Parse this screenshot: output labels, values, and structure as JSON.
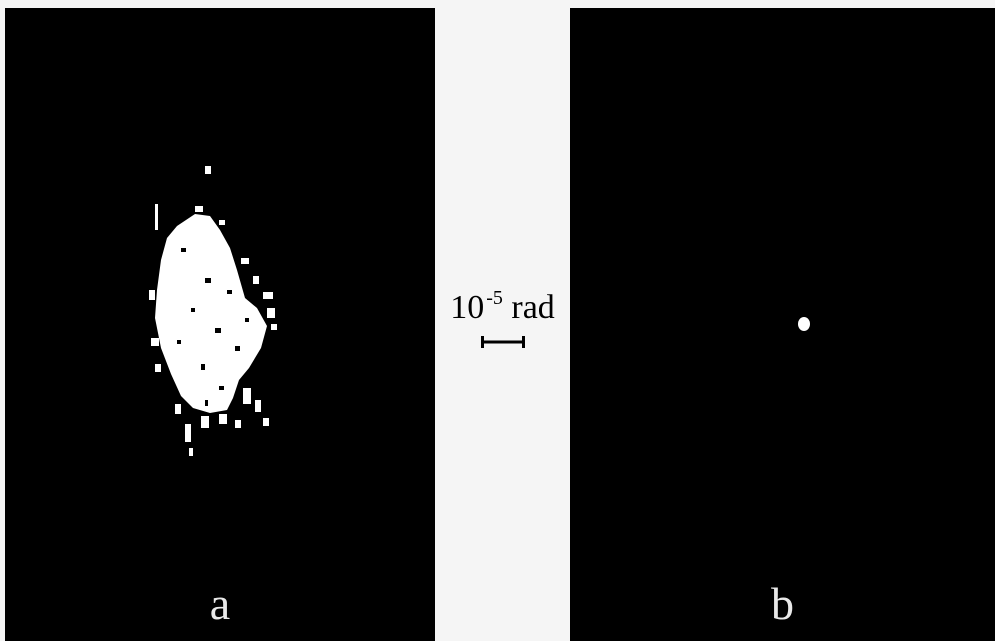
{
  "panels": [
    {
      "label": "a"
    },
    {
      "label": "b"
    }
  ],
  "scale_bar": {
    "base": "10",
    "exponent": "-5",
    "unit": "rad"
  },
  "colors": {
    "panel_background": "#000000",
    "spot": "#ffffff",
    "page_background": "#f5f5f5",
    "label": "#e8e8e8"
  }
}
